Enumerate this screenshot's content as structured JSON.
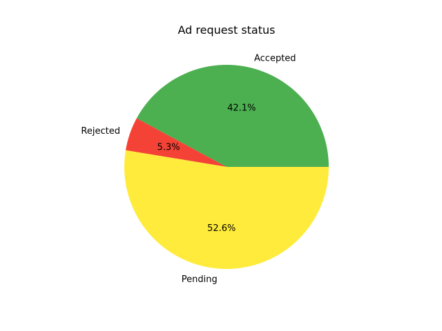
{
  "chart_data": {
    "type": "pie",
    "title": "Ad request status",
    "categories": [
      "Accepted",
      "Rejected",
      "Pending"
    ],
    "values": [
      42.1,
      5.3,
      52.6
    ],
    "percent_labels": [
      "42.1%",
      "5.3%",
      "52.6%"
    ],
    "colors": [
      "#4caf50",
      "#f44336",
      "#ffeb3b"
    ],
    "start_angle_deg": 0,
    "direction": "counterclockwise"
  }
}
